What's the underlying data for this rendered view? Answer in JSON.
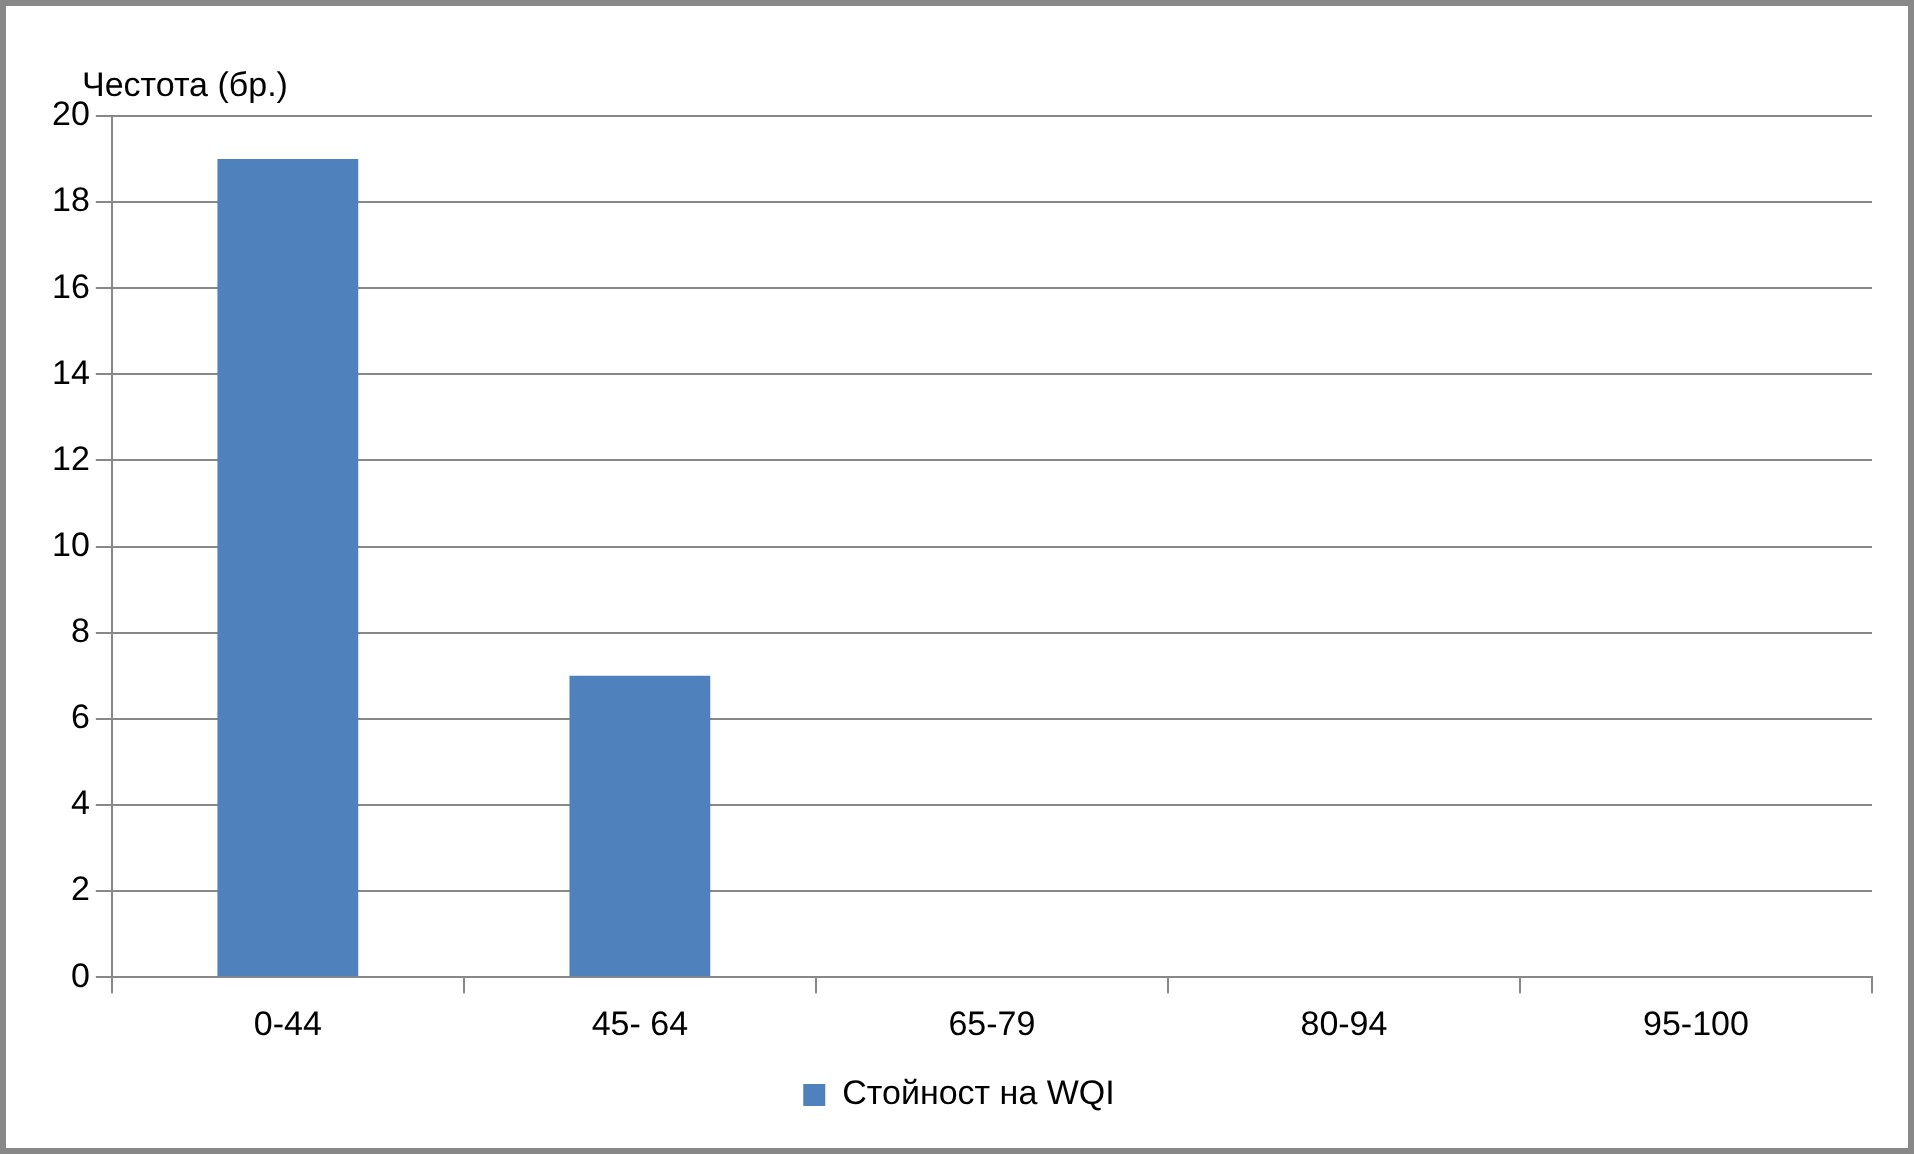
{
  "chart_data": {
    "type": "bar",
    "ylabel": "Честота (бр.)",
    "categories": [
      "0-44",
      "45- 64",
      "65-79",
      "80-94",
      "95-100"
    ],
    "series": [
      {
        "name": "Стойност на WQI",
        "color": "#4f81bd",
        "values": [
          19,
          7,
          0,
          0,
          0
        ]
      }
    ],
    "ylim": [
      0,
      20
    ],
    "yticks": [
      0,
      2,
      4,
      6,
      8,
      10,
      12,
      14,
      16,
      18,
      20
    ],
    "grid": "y",
    "legend": "bottom"
  }
}
